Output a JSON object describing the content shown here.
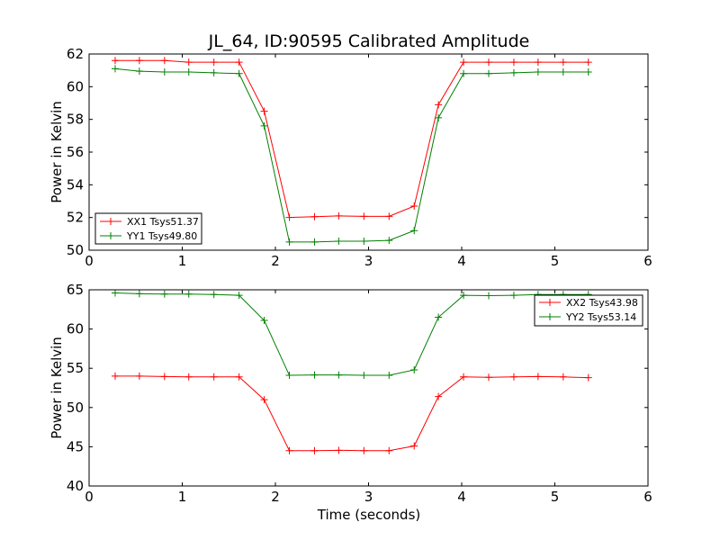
{
  "chart_data": [
    {
      "type": "line",
      "title": "JL_64, ID:90595 Calibrated Amplitude",
      "xlabel": "",
      "ylabel": "Power in Kelvin",
      "xlim": [
        0,
        6
      ],
      "ylim": [
        50,
        62
      ],
      "xticks": [
        "0",
        "1",
        "2",
        "3",
        "4",
        "5",
        "6"
      ],
      "yticks": [
        "50",
        "52",
        "54",
        "56",
        "58",
        "60",
        "62"
      ],
      "grid": false,
      "legend_position": "lower-left",
      "x": [
        0.28,
        0.54,
        0.81,
        1.07,
        1.34,
        1.61,
        1.88,
        2.15,
        2.42,
        2.68,
        2.95,
        3.22,
        3.49,
        3.75,
        4.02,
        4.29,
        4.56,
        4.82,
        5.09,
        5.36
      ],
      "series": [
        {
          "name": "XX1 Tsys51.37",
          "color": "#ff0000",
          "values": [
            61.6,
            61.6,
            61.6,
            61.5,
            61.5,
            61.5,
            58.5,
            52.0,
            52.05,
            52.1,
            52.07,
            52.07,
            52.7,
            58.9,
            61.5,
            61.5,
            61.5,
            61.5,
            61.5,
            61.5
          ]
        },
        {
          "name": "YY1 Tsys49.80",
          "color": "#008000",
          "values": [
            61.1,
            60.95,
            60.9,
            60.9,
            60.85,
            60.8,
            57.6,
            50.5,
            50.5,
            50.55,
            50.55,
            50.6,
            51.2,
            58.1,
            60.8,
            60.8,
            60.85,
            60.9,
            60.9,
            60.9
          ]
        }
      ]
    },
    {
      "type": "line",
      "title": "",
      "xlabel": "Time (seconds)",
      "ylabel": "Power in Kelvin",
      "xlim": [
        0,
        6
      ],
      "ylim": [
        40,
        65
      ],
      "xticks": [
        "0",
        "1",
        "2",
        "3",
        "4",
        "5",
        "6"
      ],
      "yticks": [
        "40",
        "45",
        "50",
        "55",
        "60",
        "65"
      ],
      "grid": false,
      "legend_position": "top-right",
      "x": [
        0.28,
        0.54,
        0.81,
        1.07,
        1.34,
        1.61,
        1.88,
        2.15,
        2.42,
        2.68,
        2.95,
        3.22,
        3.49,
        3.75,
        4.02,
        4.29,
        4.56,
        4.82,
        5.09,
        5.36
      ],
      "series": [
        {
          "name": "XX2 Tsys43.98",
          "color": "#ff0000",
          "values": [
            54.0,
            54.0,
            53.95,
            53.9,
            53.9,
            53.9,
            51.0,
            44.5,
            44.5,
            44.55,
            44.5,
            44.5,
            45.1,
            51.4,
            53.9,
            53.85,
            53.9,
            53.95,
            53.9,
            53.8
          ]
        },
        {
          "name": "YY2 Tsys53.14",
          "color": "#008000",
          "values": [
            64.6,
            64.5,
            64.45,
            64.45,
            64.4,
            64.3,
            61.1,
            54.1,
            54.15,
            54.15,
            54.1,
            54.1,
            54.8,
            61.5,
            64.3,
            64.25,
            64.3,
            64.4,
            64.4,
            64.4
          ]
        }
      ]
    }
  ]
}
